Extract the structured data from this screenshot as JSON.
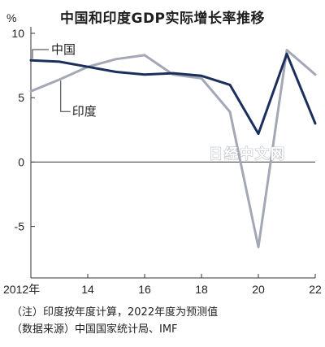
{
  "chart_data": {
    "type": "line",
    "title": "中国和印度GDP实际增长率推移",
    "unit": "%",
    "x": [
      2012,
      2013,
      2014,
      2015,
      2016,
      2017,
      2018,
      2019,
      2020,
      2021,
      2022
    ],
    "x_tick_labels": [
      "2012年",
      "14",
      "16",
      "18",
      "20",
      "22"
    ],
    "x_tick_values": [
      2012,
      2014,
      2016,
      2018,
      2020,
      2022
    ],
    "y_tick_labels": [
      "10",
      "5",
      "0",
      "-5"
    ],
    "y_tick_values": [
      10,
      5,
      0,
      -5
    ],
    "ylim": [
      -9,
      10
    ],
    "xlim": [
      2012,
      2022
    ],
    "grid": false,
    "series": [
      {
        "name": "中国",
        "color": "#1b2f5c",
        "values": [
          7.9,
          7.8,
          7.4,
          7.0,
          6.8,
          6.9,
          6.7,
          6.0,
          2.2,
          8.4,
          3.0
        ]
      },
      {
        "name": "印度",
        "color": "#a4a7b5",
        "values": [
          5.5,
          6.4,
          7.4,
          8.0,
          8.3,
          6.8,
          6.5,
          3.9,
          -6.6,
          8.7,
          6.8
        ]
      }
    ],
    "watermark": "日经中文网",
    "notes": [
      "（注）印度按年度计算，2022年度为预测值",
      "（数据来源）中国国家统计局、IMF"
    ]
  }
}
